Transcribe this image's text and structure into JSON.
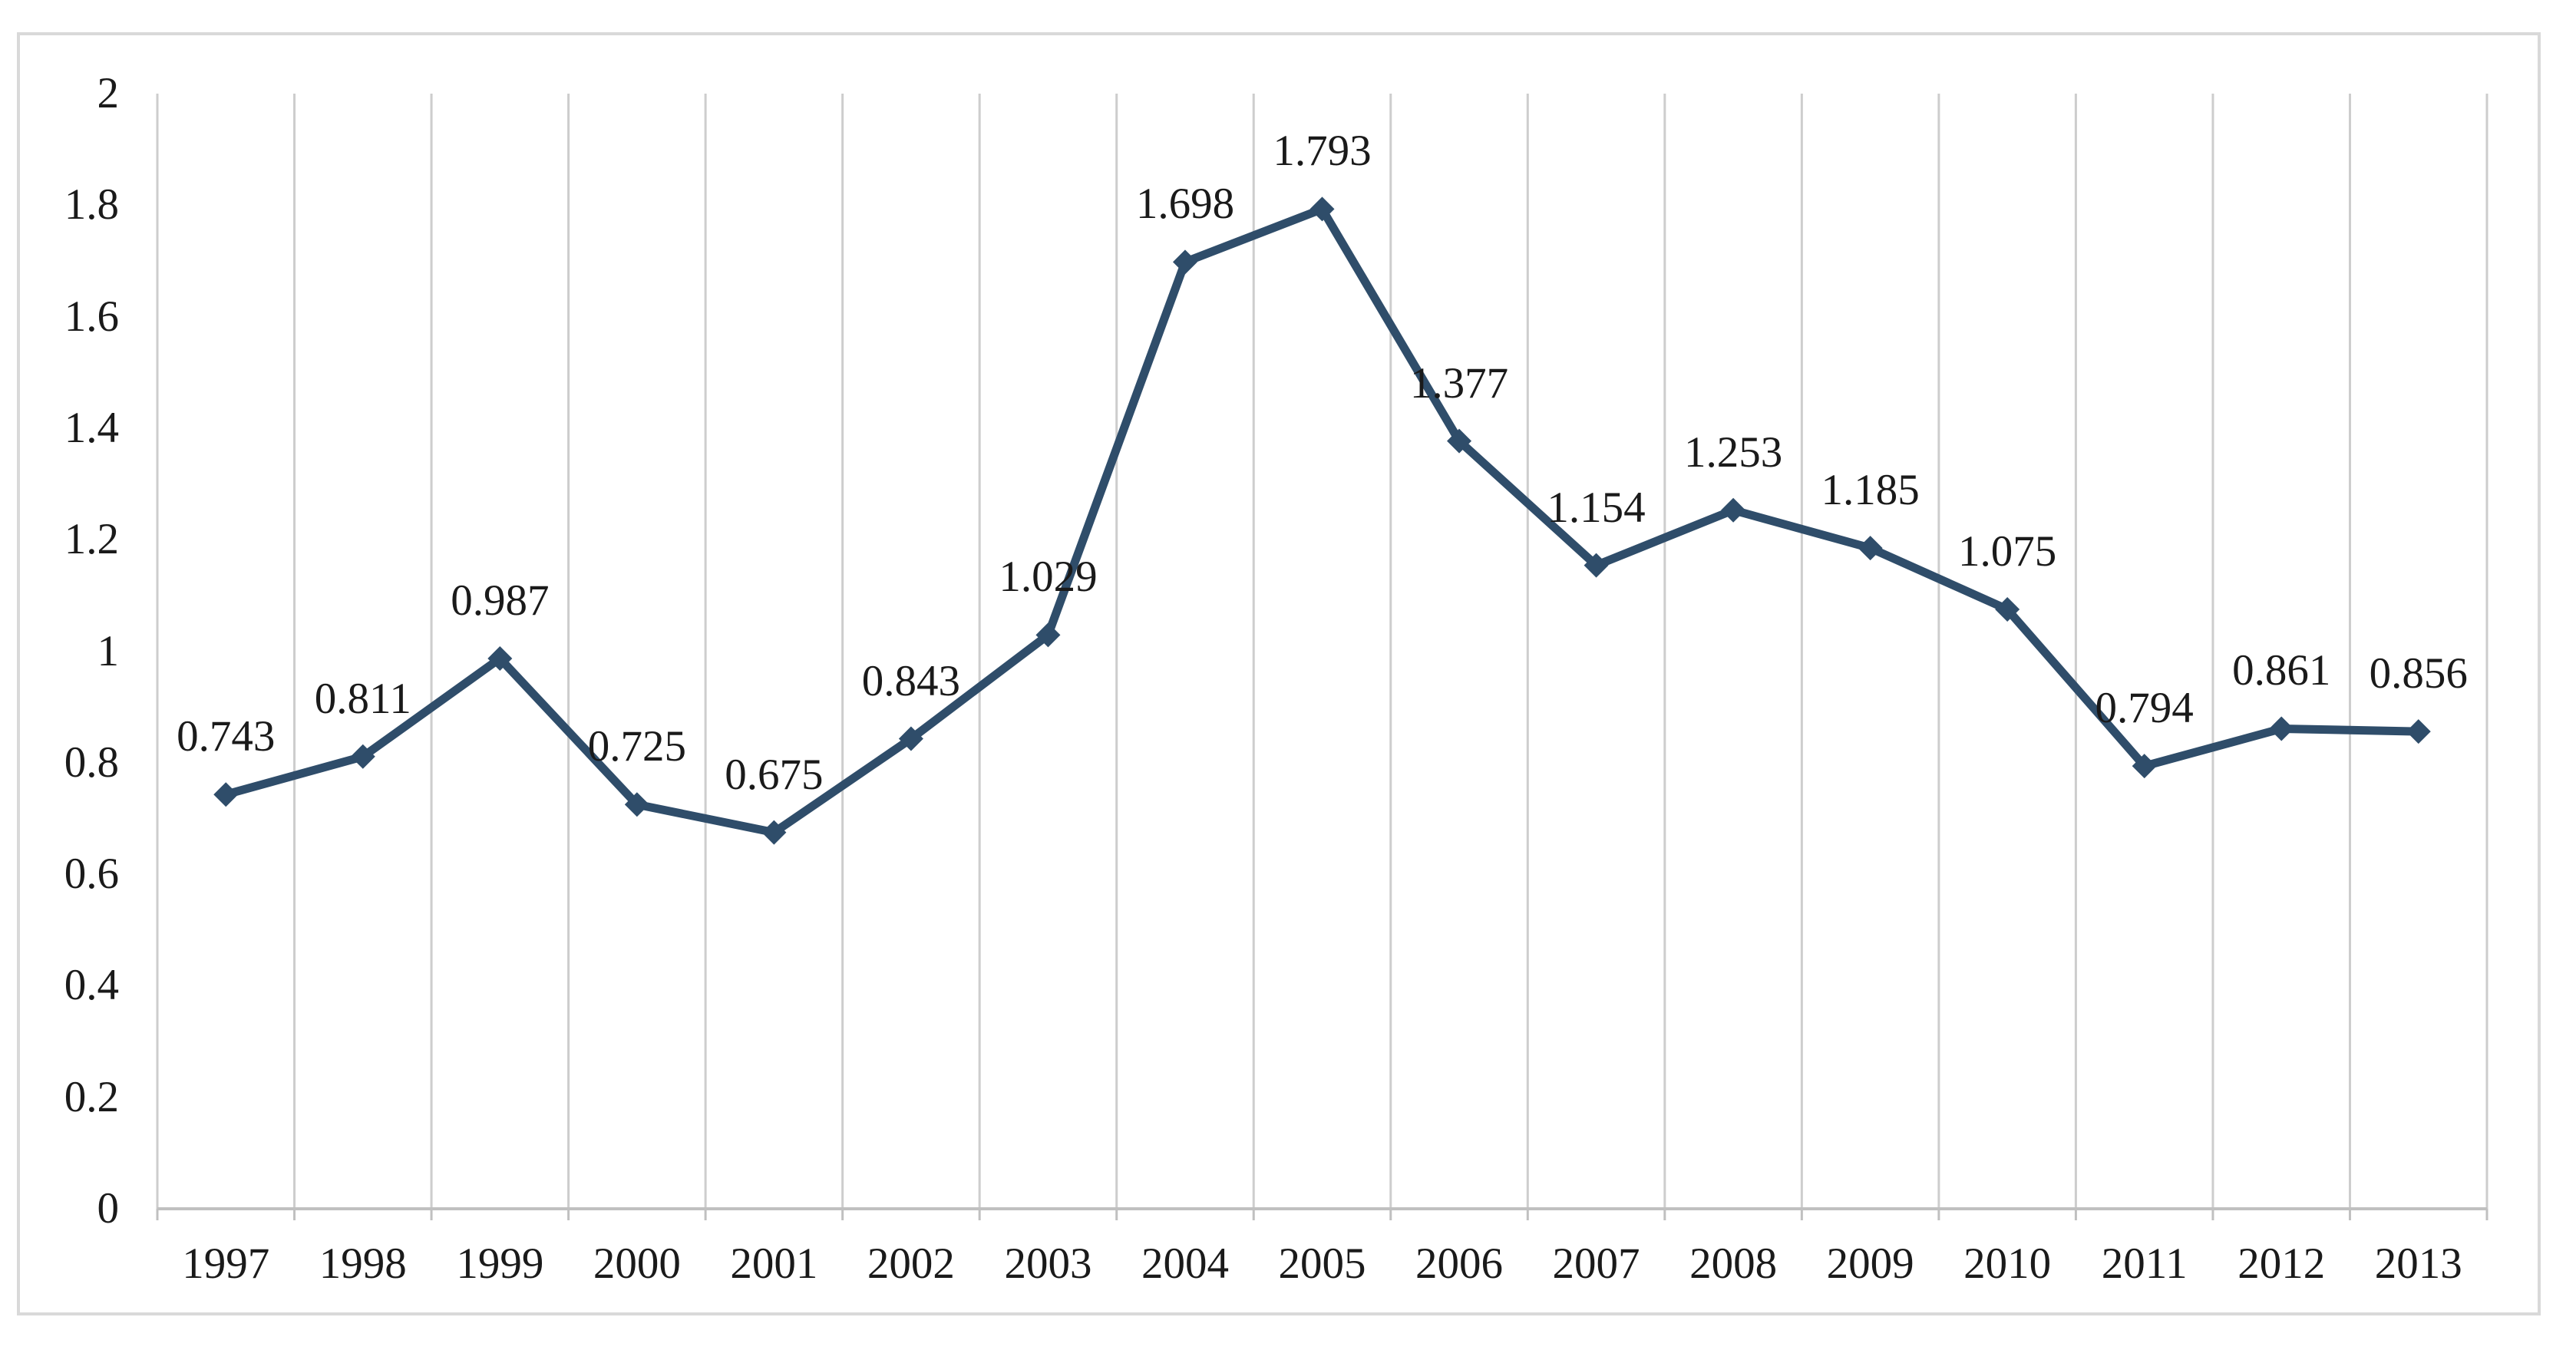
{
  "chart_data": {
    "type": "line",
    "categories": [
      "1997",
      "1998",
      "1999",
      "2000",
      "2001",
      "2002",
      "2003",
      "2004",
      "2005",
      "2006",
      "2007",
      "2008",
      "2009",
      "2010",
      "2011",
      "2012",
      "2013"
    ],
    "series": [
      {
        "name": "",
        "values": [
          0.743,
          0.811,
          0.987,
          0.725,
          0.675,
          0.843,
          1.029,
          1.698,
          1.793,
          1.377,
          1.154,
          1.253,
          1.185,
          1.075,
          0.794,
          0.861,
          0.856
        ],
        "data_labels": [
          "0.743",
          "0.811",
          "0.987",
          "0.725",
          "0.675",
          "0.843",
          "1.029",
          "1.698",
          "1.793",
          "1.377",
          "1.154",
          "1.253",
          "1.185",
          "1.075",
          "0.794",
          "0.861",
          "0.856"
        ]
      }
    ],
    "title": "",
    "xlabel": "",
    "ylabel": "",
    "ylim": [
      0,
      2
    ],
    "yticks": {
      "values": [
        0,
        0.2,
        0.4,
        0.6,
        0.8,
        1,
        1.2,
        1.4,
        1.6,
        1.8,
        2
      ],
      "labels": [
        "0",
        "0.2",
        "0.4",
        "0.6",
        "0.8",
        "1",
        "1.2",
        "1.4",
        "1.6",
        "1.8",
        "2"
      ]
    },
    "grid": "vertical-only",
    "legend_position": "none",
    "marker": "diamond",
    "colors": {
      "line": "#2f4d6a",
      "marker": "#2f4d6a",
      "gridline": "#cdcdcd",
      "axis": "#c0c0c0",
      "chart_border": "#d9d9d9",
      "background": "#ffffff",
      "text": "#1a1a1a"
    }
  }
}
